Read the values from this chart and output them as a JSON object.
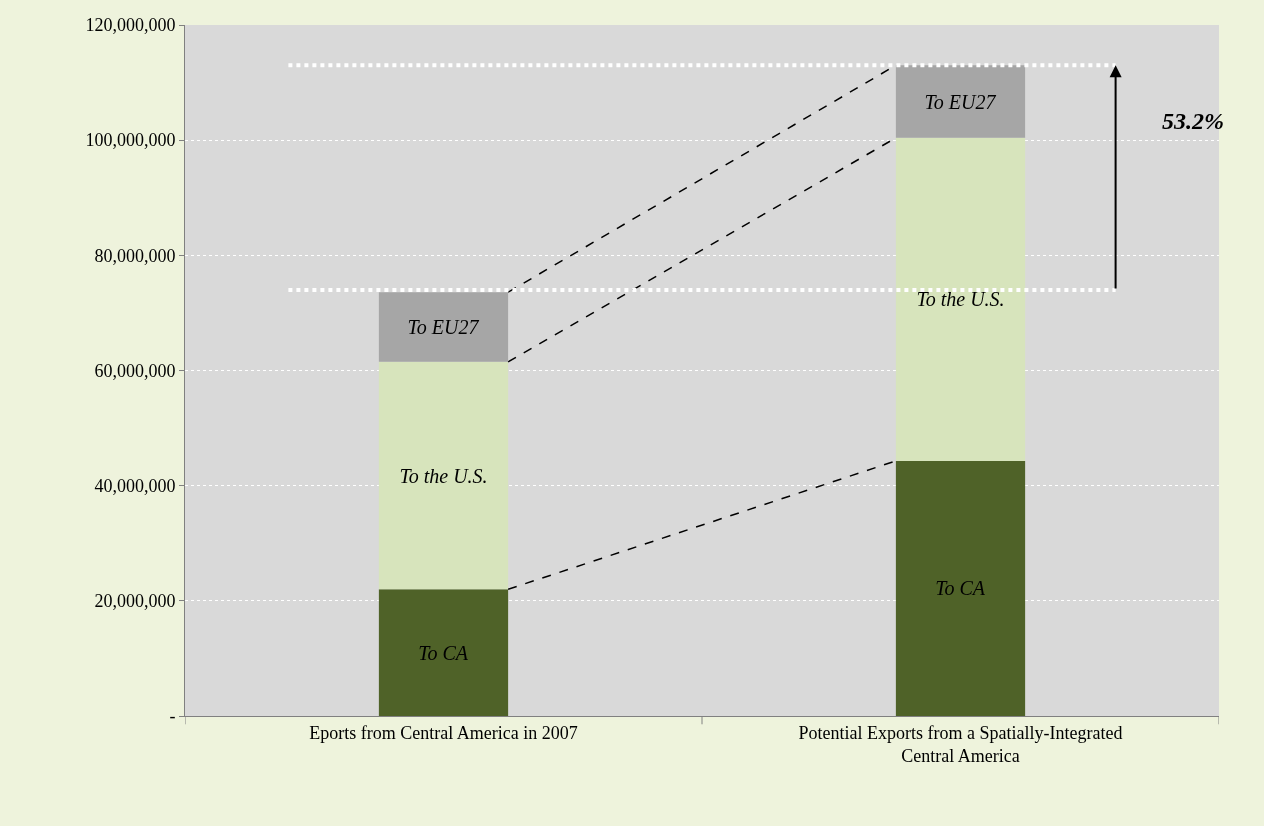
{
  "chart_data": {
    "type": "bar",
    "stacked": true,
    "categories": [
      "Eports from Central America in 2007",
      "Potential Exports from a Spatially-Integrated Central America"
    ],
    "series": [
      {
        "name": "To CA",
        "color": "#4f6228",
        "values": [
          22000000,
          44300000
        ]
      },
      {
        "name": "To the U.S.",
        "color": "#d7e4bc",
        "values": [
          39500000,
          56100000
        ]
      },
      {
        "name": "To EU27",
        "color": "#a6a6a6",
        "values": [
          12100000,
          12600000
        ]
      }
    ],
    "ylim": [
      0,
      120000000
    ],
    "yticks": [
      {
        "value": 0,
        "label": "-"
      },
      {
        "value": 20000000,
        "label": "20,000,000"
      },
      {
        "value": 40000000,
        "label": "40,000,000"
      },
      {
        "value": 60000000,
        "label": "60,000,000"
      },
      {
        "value": 80000000,
        "label": "80,000,000"
      },
      {
        "value": 100000000,
        "label": "100,000,000"
      },
      {
        "value": 120000000,
        "label": "120,000,000"
      }
    ],
    "grid": "y",
    "legend": false,
    "ref_lines": [
      {
        "axis": "y",
        "value": 74000000,
        "color": "#ffffff",
        "line_style": "dotted"
      },
      {
        "axis": "y",
        "value": 113000000,
        "color": "#ffffff",
        "line_style": "dotted"
      }
    ],
    "annotations": [
      "53.2%"
    ]
  }
}
